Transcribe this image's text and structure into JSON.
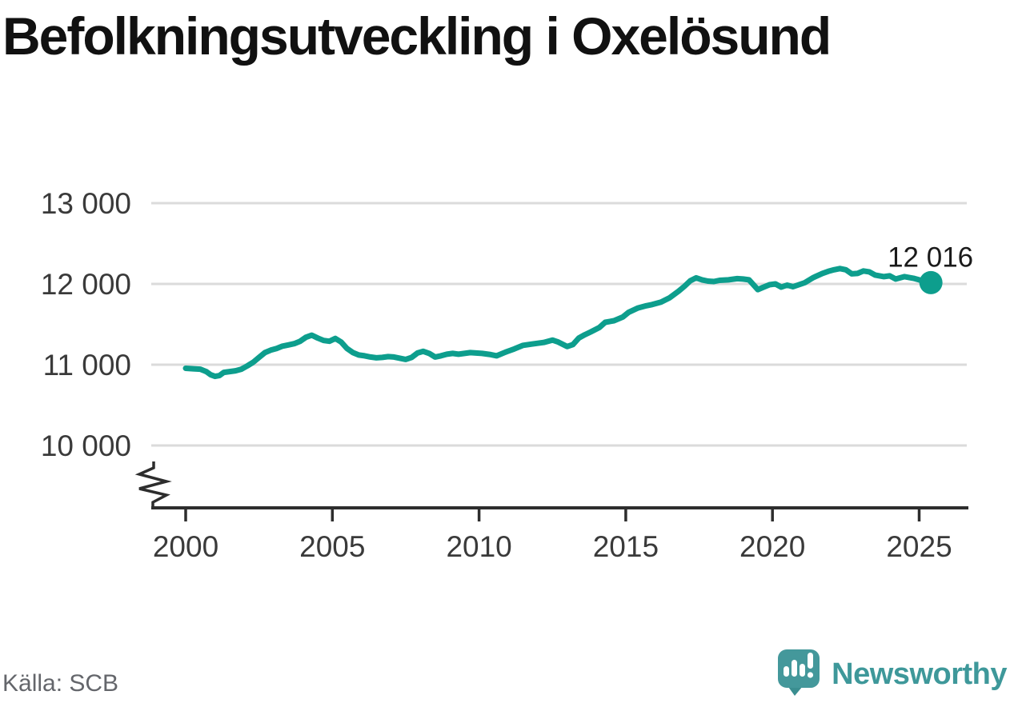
{
  "header": {
    "title": "Befolkningsutveckling i Oxelösund"
  },
  "footer": {
    "source": "Källa: SCB",
    "brand": "Newsworthy"
  },
  "colors": {
    "line": "#0d9e8d",
    "marker": "#0d9e8d",
    "grid": "#dbdbdb",
    "axis": "#2d2d2d",
    "tick_label": "#3a3a3a",
    "annotation": "#1a1a1a",
    "title": "#111111",
    "source_text": "#64666b",
    "brand_teal": "#3e989a",
    "brand_icon": "#44989b"
  },
  "chart_data": {
    "type": "line",
    "title": "Befolkningsutveckling i Oxelösund",
    "source": "Källa: SCB",
    "xlabel": "",
    "ylabel": "",
    "grid": true,
    "legend": false,
    "axis_break": true,
    "xlim": [
      2000,
      2025.4
    ],
    "ylim": [
      10000,
      13000
    ],
    "x_ticks": [
      2000,
      2005,
      2010,
      2015,
      2020,
      2025
    ],
    "x_tick_labels": [
      "2000",
      "2005",
      "2010",
      "2015",
      "2020",
      "2025"
    ],
    "y_ticks": [
      13000,
      12000,
      11000,
      10000
    ],
    "y_tick_labels": [
      "13 000",
      "12 000",
      "11 000",
      "10 000"
    ],
    "latest_value": 12016,
    "end_label": "12 016",
    "series": [
      [
        2000.0,
        10955
      ],
      [
        2000.25,
        10950
      ],
      [
        2000.5,
        10945
      ],
      [
        2000.7,
        10915
      ],
      [
        2000.85,
        10875
      ],
      [
        2001.0,
        10855
      ],
      [
        2001.15,
        10865
      ],
      [
        2001.3,
        10905
      ],
      [
        2001.5,
        10915
      ],
      [
        2001.7,
        10925
      ],
      [
        2001.9,
        10945
      ],
      [
        2002.1,
        10985
      ],
      [
        2002.3,
        11030
      ],
      [
        2002.5,
        11090
      ],
      [
        2002.7,
        11150
      ],
      [
        2002.9,
        11180
      ],
      [
        2003.1,
        11200
      ],
      [
        2003.3,
        11230
      ],
      [
        2003.5,
        11245
      ],
      [
        2003.7,
        11260
      ],
      [
        2003.9,
        11290
      ],
      [
        2004.1,
        11340
      ],
      [
        2004.3,
        11365
      ],
      [
        2004.5,
        11330
      ],
      [
        2004.7,
        11300
      ],
      [
        2004.9,
        11290
      ],
      [
        2005.1,
        11325
      ],
      [
        2005.3,
        11280
      ],
      [
        2005.5,
        11200
      ],
      [
        2005.7,
        11150
      ],
      [
        2005.9,
        11120
      ],
      [
        2006.1,
        11110
      ],
      [
        2006.3,
        11095
      ],
      [
        2006.5,
        11085
      ],
      [
        2006.7,
        11090
      ],
      [
        2006.9,
        11100
      ],
      [
        2007.1,
        11095
      ],
      [
        2007.3,
        11080
      ],
      [
        2007.5,
        11065
      ],
      [
        2007.7,
        11090
      ],
      [
        2007.9,
        11145
      ],
      [
        2008.1,
        11165
      ],
      [
        2008.3,
        11140
      ],
      [
        2008.5,
        11095
      ],
      [
        2008.7,
        11110
      ],
      [
        2008.9,
        11130
      ],
      [
        2009.1,
        11140
      ],
      [
        2009.3,
        11130
      ],
      [
        2009.5,
        11140
      ],
      [
        2009.7,
        11150
      ],
      [
        2009.9,
        11145
      ],
      [
        2010.1,
        11140
      ],
      [
        2010.4,
        11125
      ],
      [
        2010.6,
        11110
      ],
      [
        2010.9,
        11155
      ],
      [
        2011.2,
        11195
      ],
      [
        2011.5,
        11240
      ],
      [
        2011.8,
        11255
      ],
      [
        2012.0,
        11265
      ],
      [
        2012.2,
        11275
      ],
      [
        2012.5,
        11305
      ],
      [
        2012.7,
        11280
      ],
      [
        2013.0,
        11225
      ],
      [
        2013.2,
        11250
      ],
      [
        2013.4,
        11330
      ],
      [
        2013.6,
        11370
      ],
      [
        2013.8,
        11405
      ],
      [
        2014.1,
        11460
      ],
      [
        2014.3,
        11525
      ],
      [
        2014.6,
        11545
      ],
      [
        2014.9,
        11590
      ],
      [
        2015.1,
        11650
      ],
      [
        2015.4,
        11700
      ],
      [
        2015.7,
        11730
      ],
      [
        2015.9,
        11745
      ],
      [
        2016.2,
        11775
      ],
      [
        2016.5,
        11830
      ],
      [
        2016.8,
        11910
      ],
      [
        2017.0,
        11970
      ],
      [
        2017.2,
        12040
      ],
      [
        2017.4,
        12075
      ],
      [
        2017.6,
        12050
      ],
      [
        2017.8,
        12035
      ],
      [
        2018.0,
        12030
      ],
      [
        2018.2,
        12045
      ],
      [
        2018.5,
        12050
      ],
      [
        2018.8,
        12065
      ],
      [
        2019.0,
        12060
      ],
      [
        2019.2,
        12050
      ],
      [
        2019.5,
        11930
      ],
      [
        2019.7,
        11960
      ],
      [
        2019.9,
        11990
      ],
      [
        2020.1,
        12000
      ],
      [
        2020.3,
        11960
      ],
      [
        2020.5,
        11985
      ],
      [
        2020.7,
        11965
      ],
      [
        2020.9,
        11990
      ],
      [
        2021.1,
        12015
      ],
      [
        2021.4,
        12080
      ],
      [
        2021.7,
        12130
      ],
      [
        2021.9,
        12155
      ],
      [
        2022.1,
        12175
      ],
      [
        2022.3,
        12190
      ],
      [
        2022.5,
        12175
      ],
      [
        2022.7,
        12125
      ],
      [
        2022.9,
        12130
      ],
      [
        2023.1,
        12160
      ],
      [
        2023.3,
        12150
      ],
      [
        2023.5,
        12110
      ],
      [
        2023.8,
        12090
      ],
      [
        2024.0,
        12100
      ],
      [
        2024.2,
        12060
      ],
      [
        2024.5,
        12090
      ],
      [
        2024.8,
        12070
      ],
      [
        2025.0,
        12050
      ],
      [
        2025.2,
        12035
      ],
      [
        2025.4,
        12016
      ]
    ]
  }
}
